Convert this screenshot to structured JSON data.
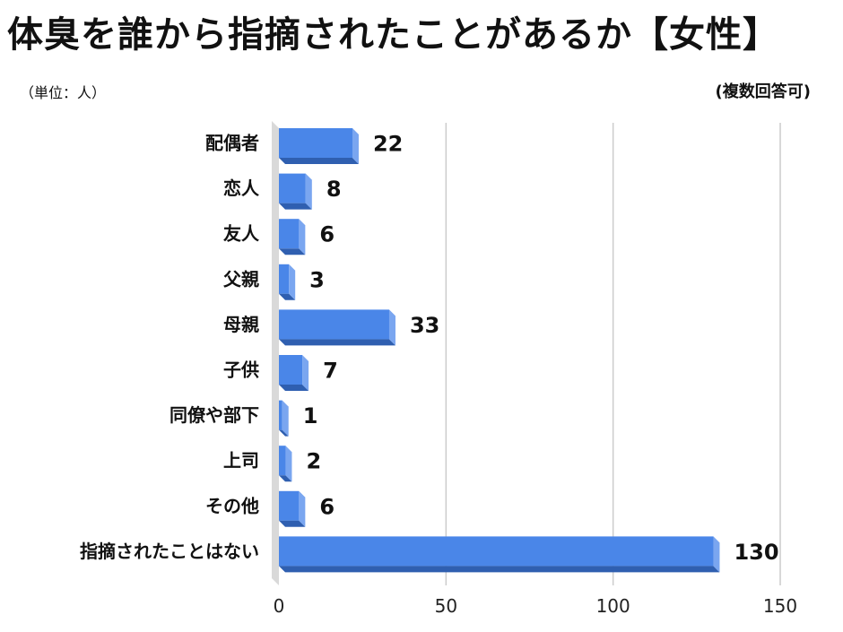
{
  "chart_data": {
    "type": "bar",
    "orientation": "horizontal",
    "title": "体臭を誰から指摘されたことがあるか【女性】",
    "unit_note": "（単位：人）",
    "answer_note": "(複数回答可)",
    "categories": [
      "配偶者",
      "恋人",
      "友人",
      "父親",
      "母親",
      "子供",
      "同僚や部下",
      "上司",
      "その他",
      "指摘されたことはない"
    ],
    "values": [
      22,
      8,
      6,
      3,
      33,
      7,
      1,
      2,
      6,
      130
    ],
    "x_ticks": [
      "0",
      "50",
      "100",
      "150"
    ],
    "xlim": [
      0,
      150
    ],
    "grid": true,
    "bar_style": "3d",
    "colors": {
      "bar": "#4a86e8",
      "bar_dark": "#2f5fb0",
      "bar_top": "#7aa6f0",
      "grid": "#cccccc"
    }
  }
}
